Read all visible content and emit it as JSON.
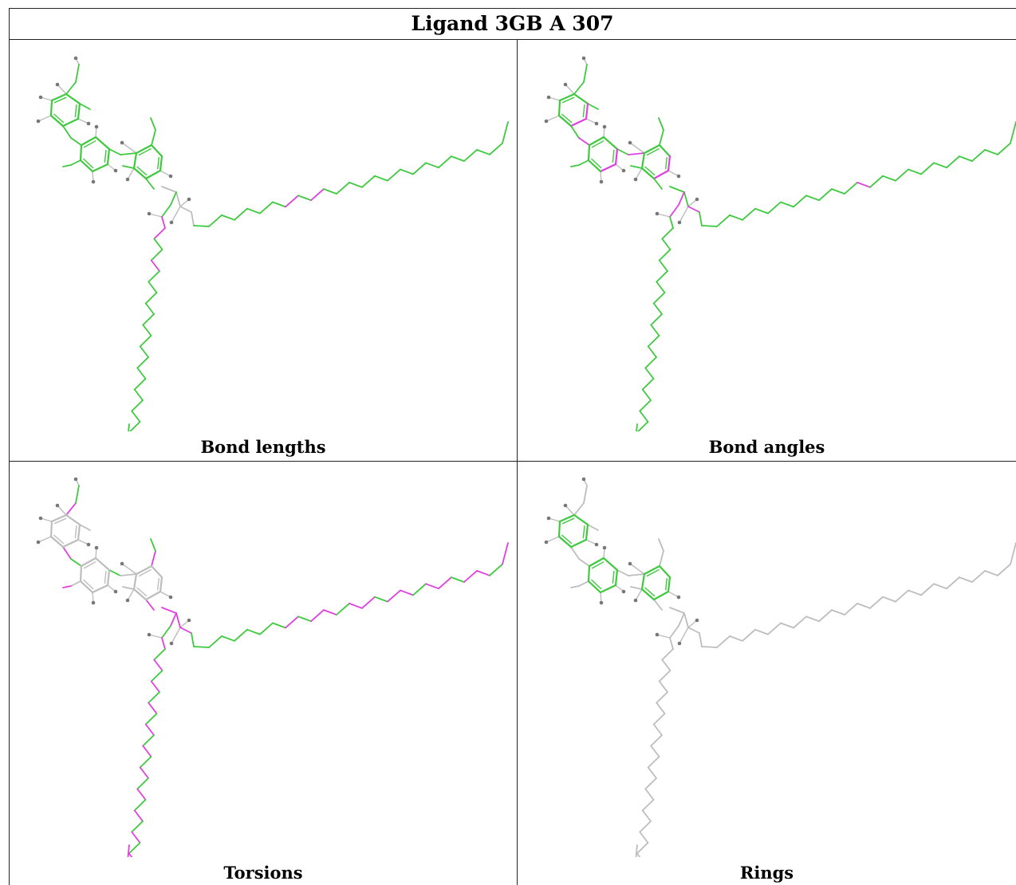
{
  "title": "Ligand 3GB A 307",
  "panels": [
    {
      "key": "bond_lengths",
      "caption": "Bond lengths"
    },
    {
      "key": "bond_angles",
      "caption": "Bond angles"
    },
    {
      "key": "torsions",
      "caption": "Torsions"
    },
    {
      "key": "rings",
      "caption": "Rings"
    }
  ],
  "colors": {
    "ok": "#3ec93e",
    "outlier": "#e040e0",
    "neutral": "#bdbdbd",
    "hydrogen": "#777777",
    "border": "#222222"
  }
}
